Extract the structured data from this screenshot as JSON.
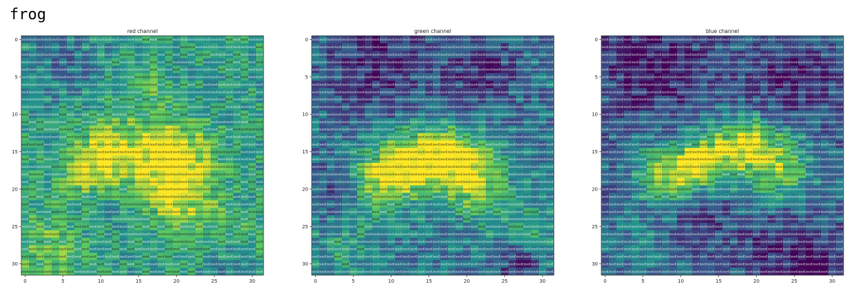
{
  "figure_title": "frog",
  "colormap": [
    "#440154",
    "#3b528b",
    "#21918c",
    "#5ec962",
    "#fde725"
  ],
  "chart_data": [
    {
      "type": "heatmap",
      "title": "red channel",
      "x_ticks": [
        0,
        5,
        10,
        15,
        20,
        25,
        30
      ],
      "y_ticks": [
        0,
        5,
        10,
        15,
        20,
        25,
        30
      ],
      "xlim": [
        -0.5,
        31.5
      ],
      "ylim": [
        31.5,
        -0.5
      ],
      "rows": 32,
      "cols": 32,
      "cell_text": "tensor(0.",
      "value_range": [
        0,
        1
      ],
      "hotspots": [
        {
          "x": 16,
          "y": 8,
          "r": 2,
          "v": 0.9
        },
        {
          "x": 12,
          "y": 14,
          "r": 3,
          "v": 0.85
        },
        {
          "x": 20,
          "y": 15,
          "r": 3,
          "v": 0.9
        },
        {
          "x": 9,
          "y": 18,
          "r": 3,
          "v": 0.9
        },
        {
          "x": 19,
          "y": 19,
          "r": 4,
          "v": 0.85
        },
        {
          "x": 22,
          "y": 22,
          "r": 3,
          "v": 0.7
        },
        {
          "x": 3,
          "y": 28,
          "r": 4,
          "v": 0.75
        },
        {
          "x": 29,
          "y": 28,
          "r": 3,
          "v": 0.7
        }
      ],
      "coldspots": [
        {
          "x": 16,
          "y": 9,
          "r": 1.5,
          "v": 0.25
        },
        {
          "x": 5,
          "y": 3,
          "r": 4,
          "v": 0.35
        },
        {
          "x": 10,
          "y": 22,
          "r": 3,
          "v": 0.4
        },
        {
          "x": 28,
          "y": 30,
          "r": 2,
          "v": 0.25
        }
      ],
      "base": 0.55
    },
    {
      "type": "heatmap",
      "title": "green channel",
      "x_ticks": [
        0,
        5,
        10,
        15,
        20,
        25,
        30
      ],
      "y_ticks": [
        0,
        5,
        10,
        15,
        20,
        25,
        30
      ],
      "xlim": [
        -0.5,
        31.5
      ],
      "ylim": [
        31.5,
        -0.5
      ],
      "rows": 32,
      "cols": 32,
      "cell_text": "tensor(0.",
      "value_range": [
        0,
        1
      ],
      "hotspots": [
        {
          "x": 12,
          "y": 17,
          "r": 3,
          "v": 0.85
        },
        {
          "x": 20,
          "y": 17,
          "r": 3,
          "v": 0.85
        },
        {
          "x": 8,
          "y": 19,
          "r": 3,
          "v": 0.8
        },
        {
          "x": 16,
          "y": 15,
          "r": 3,
          "v": 0.75
        },
        {
          "x": 22,
          "y": 21,
          "r": 3,
          "v": 0.65
        },
        {
          "x": 4,
          "y": 28,
          "r": 3,
          "v": 0.6
        },
        {
          "x": 29,
          "y": 26,
          "r": 3,
          "v": 0.6
        }
      ],
      "coldspots": [
        {
          "x": 8,
          "y": 3,
          "r": 5,
          "v": 0.1
        },
        {
          "x": 22,
          "y": 4,
          "r": 4,
          "v": 0.15
        },
        {
          "x": 27,
          "y": 30,
          "r": 2,
          "v": 0.05
        },
        {
          "x": 3,
          "y": 20,
          "r": 3,
          "v": 0.2
        }
      ],
      "base": 0.38
    },
    {
      "type": "heatmap",
      "title": "blue channel",
      "x_ticks": [
        0,
        5,
        10,
        15,
        20,
        25,
        30
      ],
      "y_ticks": [
        0,
        5,
        10,
        15,
        20,
        25,
        30
      ],
      "xlim": [
        -0.5,
        31.5
      ],
      "ylim": [
        31.5,
        -0.5
      ],
      "rows": 32,
      "cols": 32,
      "cell_text": "tensor(0.",
      "value_range": [
        0,
        1
      ],
      "hotspots": [
        {
          "x": 16,
          "y": 15,
          "r": 3,
          "v": 0.85
        },
        {
          "x": 23,
          "y": 17,
          "r": 3,
          "v": 0.85
        },
        {
          "x": 8,
          "y": 18,
          "r": 3,
          "v": 0.85
        },
        {
          "x": 12,
          "y": 17,
          "r": 2,
          "v": 0.7
        },
        {
          "x": 20,
          "y": 13,
          "r": 2,
          "v": 0.6
        },
        {
          "x": 5,
          "y": 28,
          "r": 3,
          "v": 0.45
        }
      ],
      "coldspots": [
        {
          "x": 6,
          "y": 3,
          "r": 5,
          "v": 0.05
        },
        {
          "x": 25,
          "y": 5,
          "r": 4,
          "v": 0.1
        },
        {
          "x": 28,
          "y": 30,
          "r": 3,
          "v": 0.05
        },
        {
          "x": 12,
          "y": 24,
          "r": 3,
          "v": 0.15
        },
        {
          "x": 22,
          "y": 28,
          "r": 3,
          "v": 0.15
        }
      ],
      "base": 0.3
    }
  ]
}
